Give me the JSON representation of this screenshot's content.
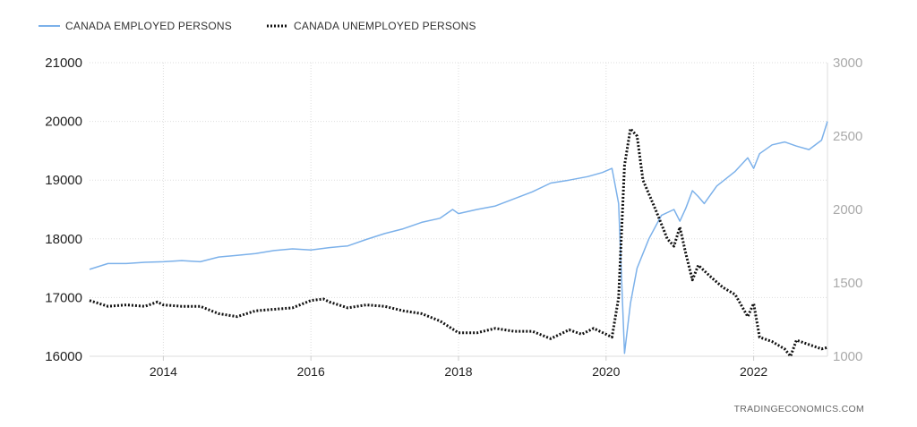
{
  "chart_data": {
    "type": "line",
    "legend_position": "top-left",
    "grid": true,
    "source_credit": "TRADINGECONOMICS.COM",
    "x_ticks": [
      "2014",
      "2016",
      "2018",
      "2020",
      "2022"
    ],
    "x_range": [
      2013.0,
      2023.0
    ],
    "y_left": {
      "range": [
        16000,
        21000
      ],
      "ticks": [
        "21000",
        "20000",
        "19000",
        "18000",
        "17000",
        "16000"
      ]
    },
    "y_right": {
      "range": [
        1000,
        3000
      ],
      "ticks": [
        "3000",
        "2500",
        "2000",
        "1500",
        "1000"
      ]
    },
    "series": [
      {
        "name": "CANADA EMPLOYED PERSONS",
        "axis": "left",
        "color": "#7cb1ea",
        "style": "solid",
        "points": [
          [
            2013.0,
            17480
          ],
          [
            2013.25,
            17580
          ],
          [
            2013.5,
            17580
          ],
          [
            2013.75,
            17600
          ],
          [
            2014.0,
            17610
          ],
          [
            2014.25,
            17630
          ],
          [
            2014.5,
            17610
          ],
          [
            2014.75,
            17690
          ],
          [
            2015.0,
            17720
          ],
          [
            2015.25,
            17750
          ],
          [
            2015.5,
            17800
          ],
          [
            2015.75,
            17830
          ],
          [
            2016.0,
            17810
          ],
          [
            2016.25,
            17850
          ],
          [
            2016.5,
            17880
          ],
          [
            2016.75,
            17990
          ],
          [
            2017.0,
            18090
          ],
          [
            2017.25,
            18170
          ],
          [
            2017.5,
            18280
          ],
          [
            2017.75,
            18350
          ],
          [
            2017.92,
            18500
          ],
          [
            2018.0,
            18430
          ],
          [
            2018.25,
            18500
          ],
          [
            2018.5,
            18560
          ],
          [
            2018.75,
            18680
          ],
          [
            2019.0,
            18800
          ],
          [
            2019.25,
            18950
          ],
          [
            2019.5,
            19000
          ],
          [
            2019.75,
            19060
          ],
          [
            2019.95,
            19130
          ],
          [
            2020.08,
            19200
          ],
          [
            2020.17,
            18600
          ],
          [
            2020.25,
            16050
          ],
          [
            2020.33,
            16900
          ],
          [
            2020.42,
            17500
          ],
          [
            2020.58,
            18000
          ],
          [
            2020.75,
            18400
          ],
          [
            2020.92,
            18500
          ],
          [
            2021.0,
            18300
          ],
          [
            2021.08,
            18520
          ],
          [
            2021.17,
            18820
          ],
          [
            2021.25,
            18720
          ],
          [
            2021.33,
            18600
          ],
          [
            2021.5,
            18900
          ],
          [
            2021.75,
            19150
          ],
          [
            2021.92,
            19380
          ],
          [
            2022.0,
            19200
          ],
          [
            2022.08,
            19450
          ],
          [
            2022.25,
            19600
          ],
          [
            2022.42,
            19650
          ],
          [
            2022.58,
            19580
          ],
          [
            2022.75,
            19520
          ],
          [
            2022.92,
            19680
          ],
          [
            2023.0,
            20000
          ]
        ]
      },
      {
        "name": "CANADA UNEMPLOYED PERSONS",
        "axis": "right",
        "color": "#111111",
        "style": "dotted",
        "points": [
          [
            2013.0,
            1380
          ],
          [
            2013.25,
            1340
          ],
          [
            2013.5,
            1350
          ],
          [
            2013.75,
            1340
          ],
          [
            2013.92,
            1370
          ],
          [
            2014.0,
            1350
          ],
          [
            2014.25,
            1340
          ],
          [
            2014.5,
            1340
          ],
          [
            2014.75,
            1290
          ],
          [
            2015.0,
            1270
          ],
          [
            2015.25,
            1310
          ],
          [
            2015.5,
            1320
          ],
          [
            2015.75,
            1330
          ],
          [
            2016.0,
            1380
          ],
          [
            2016.17,
            1390
          ],
          [
            2016.25,
            1370
          ],
          [
            2016.5,
            1330
          ],
          [
            2016.75,
            1350
          ],
          [
            2017.0,
            1340
          ],
          [
            2017.25,
            1310
          ],
          [
            2017.5,
            1290
          ],
          [
            2017.75,
            1240
          ],
          [
            2018.0,
            1160
          ],
          [
            2018.25,
            1160
          ],
          [
            2018.5,
            1190
          ],
          [
            2018.75,
            1170
          ],
          [
            2019.0,
            1170
          ],
          [
            2019.25,
            1120
          ],
          [
            2019.5,
            1180
          ],
          [
            2019.67,
            1150
          ],
          [
            2019.83,
            1190
          ],
          [
            2020.0,
            1150
          ],
          [
            2020.08,
            1130
          ],
          [
            2020.17,
            1400
          ],
          [
            2020.25,
            2300
          ],
          [
            2020.33,
            2550
          ],
          [
            2020.42,
            2500
          ],
          [
            2020.5,
            2200
          ],
          [
            2020.67,
            2000
          ],
          [
            2020.83,
            1800
          ],
          [
            2020.92,
            1750
          ],
          [
            2021.0,
            1880
          ],
          [
            2021.08,
            1700
          ],
          [
            2021.17,
            1520
          ],
          [
            2021.25,
            1620
          ],
          [
            2021.42,
            1540
          ],
          [
            2021.58,
            1470
          ],
          [
            2021.75,
            1420
          ],
          [
            2021.92,
            1270
          ],
          [
            2022.0,
            1360
          ],
          [
            2022.08,
            1130
          ],
          [
            2022.25,
            1100
          ],
          [
            2022.42,
            1050
          ],
          [
            2022.5,
            1000
          ],
          [
            2022.58,
            1110
          ],
          [
            2022.75,
            1080
          ],
          [
            2022.92,
            1050
          ],
          [
            2023.0,
            1060
          ]
        ]
      }
    ]
  }
}
